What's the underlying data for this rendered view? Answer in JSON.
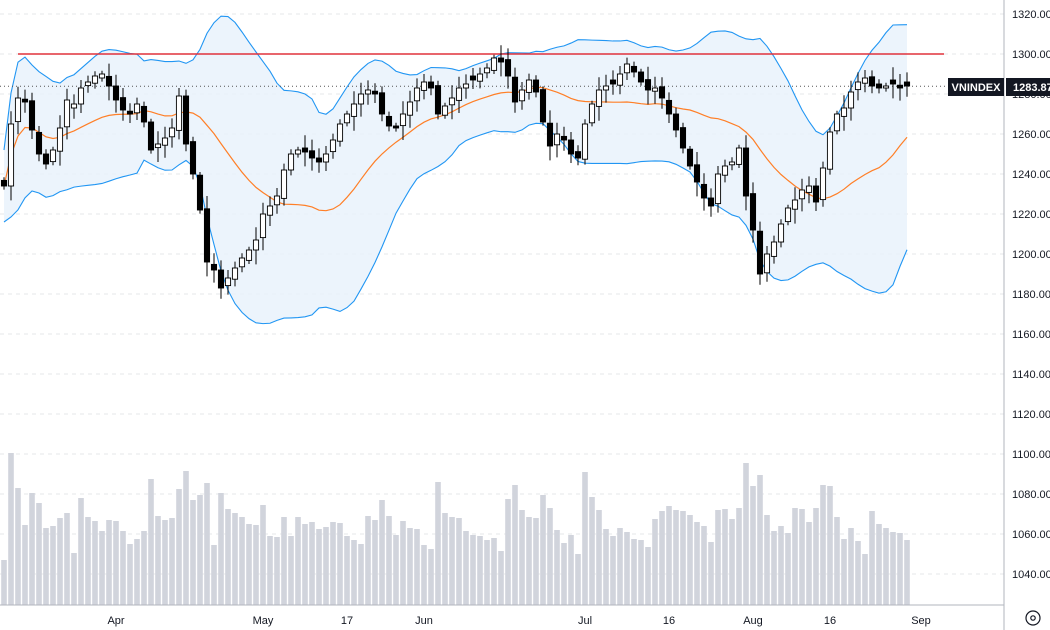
{
  "chart_data": {
    "type": "candlestick",
    "symbol": "VNINDEX",
    "last_price": "1283.87",
    "ylim": [
      1030,
      1330
    ],
    "y_ticks": [
      "1320.00",
      "1300.00",
      "1280.00",
      "1260.00",
      "1240.00",
      "1220.00",
      "1200.00",
      "1180.00",
      "1160.00",
      "1140.00",
      "1120.00",
      "1100.00",
      "1080.00",
      "1060.00",
      "1040.00"
    ],
    "x_labels": [
      {
        "label": "Apr",
        "index": 16
      },
      {
        "label": "May",
        "index": 37
      },
      {
        "label": "17",
        "index": 49
      },
      {
        "label": "Jun",
        "index": 60
      },
      {
        "label": "Jul",
        "index": 83
      },
      {
        "label": "16",
        "index": 95
      },
      {
        "label": "Aug",
        "index": 107
      },
      {
        "label": "16",
        "index": 118
      },
      {
        "label": "Sep",
        "index": 131
      }
    ],
    "resistance_level": 1300,
    "colors": {
      "up_body": "#ffffff",
      "down_body": "#000000",
      "candle_outline": "#000000",
      "resistance_line": "#e0323c",
      "bollinger_band": "#2196f3",
      "band_fill": "#e9f2fc",
      "moving_average": "#ff7f27",
      "volume_bar": "#d1d4dc",
      "price_tag_bg": "#131722"
    },
    "closes": [
      1234,
      1265,
      1278,
      1276,
      1262,
      1250,
      1245,
      1252,
      1263,
      1277,
      1275,
      1283,
      1286,
      1289,
      1290,
      1284,
      1277,
      1272,
      1270,
      1275,
      1266,
      1252,
      1255,
      1258,
      1263,
      1279,
      1255,
      1240,
      1222,
      1196,
      1192,
      1183,
      1188,
      1193,
      1198,
      1202,
      1207,
      1220,
      1224,
      1229,
      1242,
      1250,
      1252,
      1251,
      1248,
      1246,
      1250,
      1257,
      1265,
      1270,
      1275,
      1280,
      1282,
      1280,
      1270,
      1264,
      1263,
      1270,
      1276,
      1283,
      1286,
      1283,
      1270,
      1274,
      1278,
      1283,
      1285,
      1287,
      1290,
      1293,
      1298,
      1296,
      1289,
      1276,
      1282,
      1287,
      1281,
      1266,
      1254,
      1260,
      1257,
      1250,
      1248,
      1265,
      1275,
      1282,
      1284,
      1285,
      1290,
      1295,
      1291,
      1286,
      1282,
      1283,
      1278,
      1270,
      1262,
      1253,
      1244,
      1236,
      1228,
      1224,
      1240,
      1244,
      1246,
      1253,
      1229,
      1212,
      1190,
      1200,
      1206,
      1215,
      1223,
      1227,
      1232,
      1234,
      1226,
      1243,
      1261,
      1270,
      1273,
      1281,
      1286,
      1288,
      1284,
      1283,
      1284,
      1285,
      1283,
      1284
    ]
  }
}
